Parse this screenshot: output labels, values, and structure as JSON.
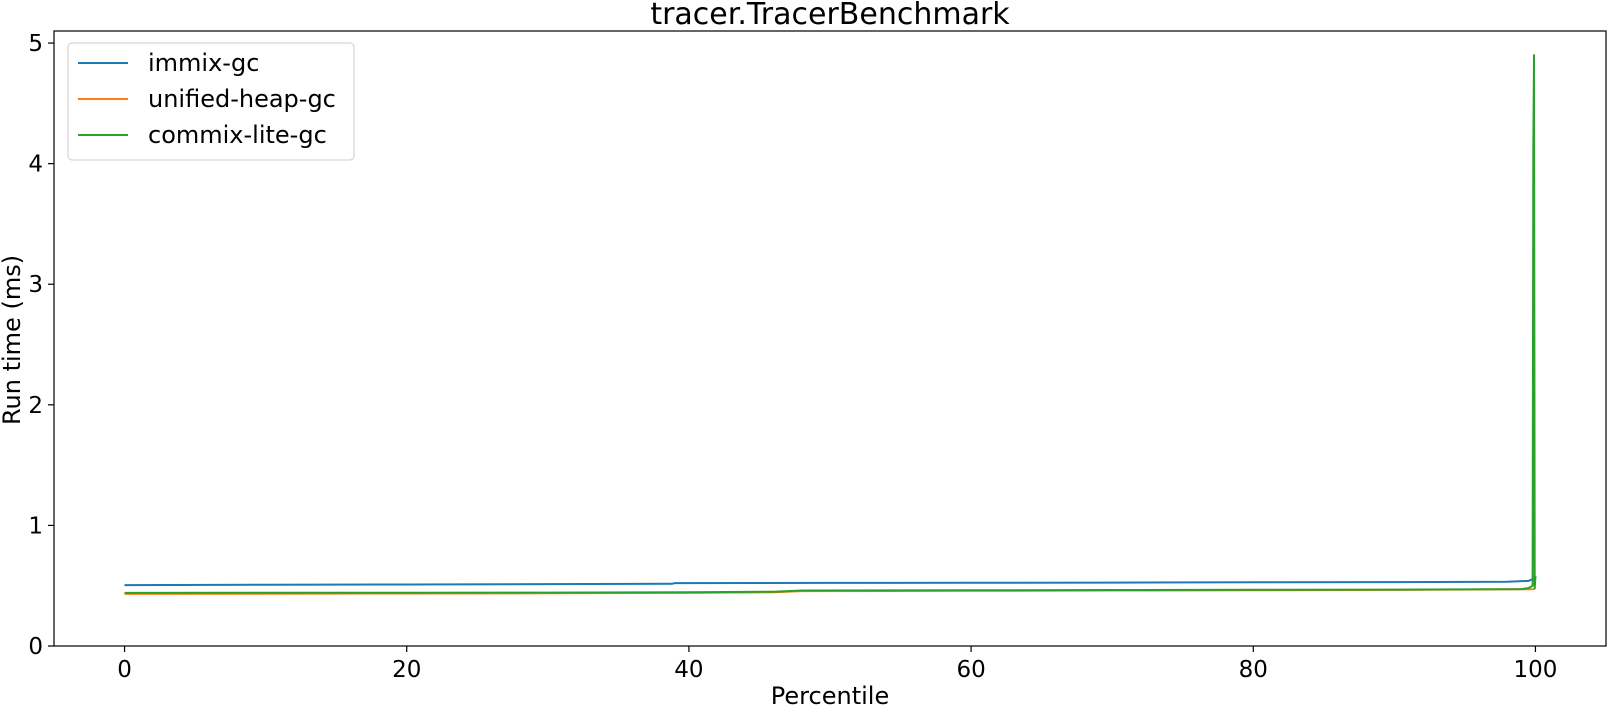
{
  "chart_data": {
    "type": "line",
    "title": "tracer.TracerBenchmark",
    "xlabel": "Percentile",
    "ylabel": "Run time (ms)",
    "xlim": [
      -5,
      105
    ],
    "ylim": [
      0,
      5.1
    ],
    "xticks": [
      0,
      20,
      40,
      60,
      80,
      100
    ],
    "yticks": [
      0,
      1,
      2,
      3,
      4,
      5
    ],
    "grid": false,
    "legend_position": "top-left",
    "series": [
      {
        "name": "immix-gc",
        "color": "#1f77b4",
        "x": [
          0,
          10,
          20,
          30,
          38.8,
          39,
          50,
          60,
          70,
          80,
          90,
          98,
          99.5,
          99.9,
          100
        ],
        "y": [
          0.505,
          0.508,
          0.51,
          0.513,
          0.516,
          0.522,
          0.523,
          0.524,
          0.526,
          0.528,
          0.53,
          0.532,
          0.54,
          0.56,
          0.57
        ]
      },
      {
        "name": "unified-heap-gc",
        "color": "#ff7f0e",
        "x": [
          0,
          10,
          20,
          30,
          40,
          46,
          48,
          60,
          70,
          80,
          90,
          99,
          99.5,
          99.9,
          100
        ],
        "y": [
          0.432,
          0.434,
          0.435,
          0.437,
          0.44,
          0.445,
          0.455,
          0.458,
          0.46,
          0.462,
          0.465,
          0.47,
          0.47,
          0.472,
          0.48
        ]
      },
      {
        "name": "commix-lite-gc",
        "color": "#2ca02c",
        "x": [
          0,
          10,
          20,
          30,
          40,
          46,
          48,
          60,
          70,
          80,
          90,
          99,
          99.5,
          99.8,
          99.85,
          99.9,
          99.95,
          100
        ],
        "y": [
          0.44,
          0.441,
          0.442,
          0.443,
          0.446,
          0.45,
          0.46,
          0.462,
          0.464,
          0.466,
          0.468,
          0.472,
          0.48,
          0.5,
          4.1,
          4.9,
          0.48,
          0.58
        ]
      }
    ]
  }
}
